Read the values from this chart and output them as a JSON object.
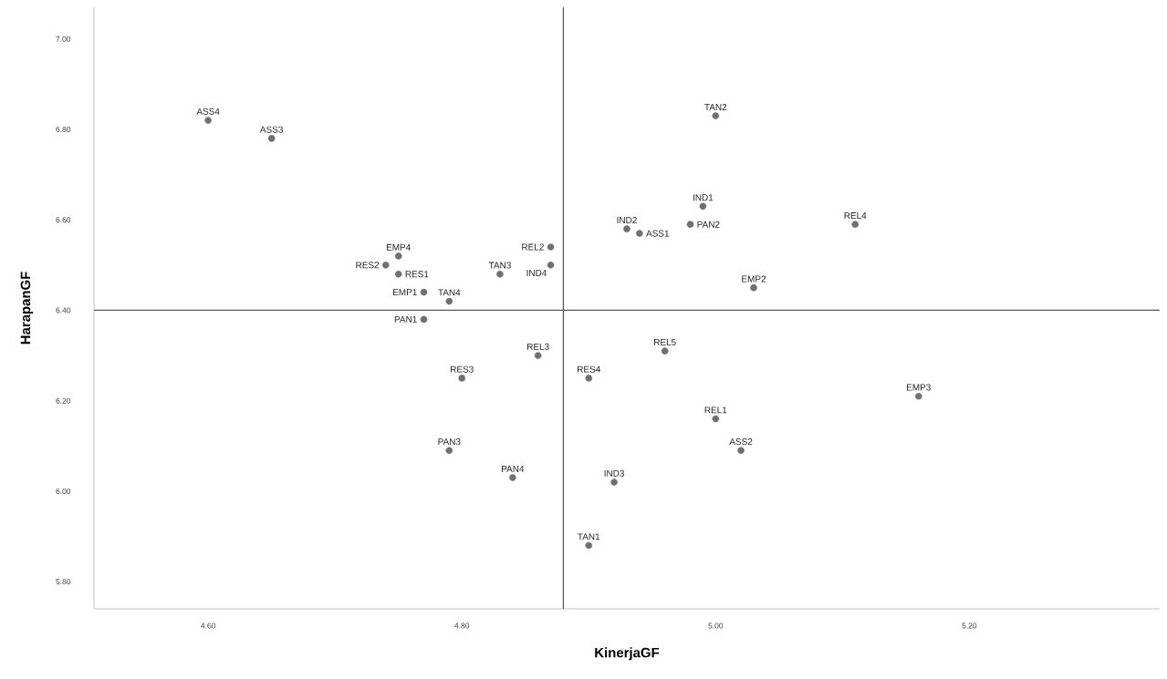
{
  "chart_data": {
    "type": "scatter",
    "xlabel": "KinerjaGF",
    "ylabel": "HarapanGF",
    "marker": "circle",
    "grid": false,
    "xlim": [
      4.51,
      5.35
    ],
    "ylim": [
      5.74,
      7.07
    ],
    "xticks": [
      {
        "value": 4.6,
        "label": "4.60"
      },
      {
        "value": 4.8,
        "label": "4.80"
      },
      {
        "value": 5.0,
        "label": "5.00"
      },
      {
        "value": 5.2,
        "label": "5.20"
      }
    ],
    "yticks": [
      {
        "value": 5.8,
        "label": "5.80"
      },
      {
        "value": 6.0,
        "label": "6.00"
      },
      {
        "value": 6.2,
        "label": "6.20"
      },
      {
        "value": 6.4,
        "label": "6.40"
      },
      {
        "value": 6.6,
        "label": "6.60"
      },
      {
        "value": 6.8,
        "label": "6.80"
      },
      {
        "value": 7.0,
        "label": "7.00"
      }
    ],
    "ref_lines": [
      {
        "axis": "x",
        "value": 4.88,
        "color": "#595959"
      },
      {
        "axis": "y",
        "value": 6.4,
        "color": "#595959"
      }
    ],
    "series": [
      {
        "name": "ASS4",
        "color": "#707070",
        "x": [
          4.6
        ],
        "values": [
          6.82
        ]
      },
      {
        "name": "ASS3",
        "color": "#707070",
        "x": [
          4.65
        ],
        "values": [
          6.78
        ]
      },
      {
        "name": "EMP4",
        "color": "#707070",
        "x": [
          4.75
        ],
        "values": [
          6.52
        ]
      },
      {
        "name": "RES2",
        "color": "#707070",
        "x": [
          4.74
        ],
        "values": [
          6.5
        ]
      },
      {
        "name": "RES1",
        "color": "#707070",
        "x": [
          4.75
        ],
        "values": [
          6.48
        ]
      },
      {
        "name": "EMP1",
        "color": "#707070",
        "x": [
          4.77
        ],
        "values": [
          6.44
        ]
      },
      {
        "name": "TAN4",
        "color": "#707070",
        "x": [
          4.79
        ],
        "values": [
          6.42
        ]
      },
      {
        "name": "PAN1",
        "color": "#707070",
        "x": [
          4.77
        ],
        "values": [
          6.38
        ]
      },
      {
        "name": "TAN3",
        "color": "#707070",
        "x": [
          4.83
        ],
        "values": [
          6.48
        ]
      },
      {
        "name": "REL2",
        "color": "#707070",
        "x": [
          4.87
        ],
        "values": [
          6.54
        ]
      },
      {
        "name": "IND4",
        "color": "#707070",
        "x": [
          4.87
        ],
        "values": [
          6.5
        ]
      },
      {
        "name": "REL3",
        "color": "#707070",
        "x": [
          4.86
        ],
        "values": [
          6.3
        ]
      },
      {
        "name": "RES3",
        "color": "#707070",
        "x": [
          4.8
        ],
        "values": [
          6.25
        ]
      },
      {
        "name": "PAN3",
        "color": "#707070",
        "x": [
          4.79
        ],
        "values": [
          6.09
        ]
      },
      {
        "name": "PAN4",
        "color": "#707070",
        "x": [
          4.84
        ],
        "values": [
          6.03
        ]
      },
      {
        "name": "TAN1",
        "color": "#707070",
        "x": [
          4.9
        ],
        "values": [
          5.88
        ]
      },
      {
        "name": "IND3",
        "color": "#707070",
        "x": [
          4.92
        ],
        "values": [
          6.02
        ]
      },
      {
        "name": "RES4",
        "color": "#707070",
        "x": [
          4.9
        ],
        "values": [
          6.25
        ]
      },
      {
        "name": "REL5",
        "color": "#707070",
        "x": [
          4.96
        ],
        "values": [
          6.31
        ]
      },
      {
        "name": "IND2",
        "color": "#707070",
        "x": [
          4.93
        ],
        "values": [
          6.58
        ]
      },
      {
        "name": "ASS1",
        "color": "#707070",
        "x": [
          4.94
        ],
        "values": [
          6.57
        ]
      },
      {
        "name": "PAN2",
        "color": "#707070",
        "x": [
          4.98
        ],
        "values": [
          6.59
        ]
      },
      {
        "name": "IND1",
        "color": "#707070",
        "x": [
          4.99
        ],
        "values": [
          6.63
        ]
      },
      {
        "name": "TAN2",
        "color": "#707070",
        "x": [
          5.0
        ],
        "values": [
          6.83
        ]
      },
      {
        "name": "REL4",
        "color": "#707070",
        "x": [
          5.11
        ],
        "values": [
          6.59
        ]
      },
      {
        "name": "EMP2",
        "color": "#707070",
        "x": [
          5.03
        ],
        "values": [
          6.45
        ]
      },
      {
        "name": "EMP3",
        "color": "#707070",
        "x": [
          5.16
        ],
        "values": [
          6.21
        ]
      },
      {
        "name": "REL1",
        "color": "#707070",
        "x": [
          5.0
        ],
        "values": [
          6.16
        ]
      },
      {
        "name": "ASS2",
        "color": "#707070",
        "x": [
          5.02
        ],
        "values": [
          6.09
        ]
      }
    ]
  }
}
